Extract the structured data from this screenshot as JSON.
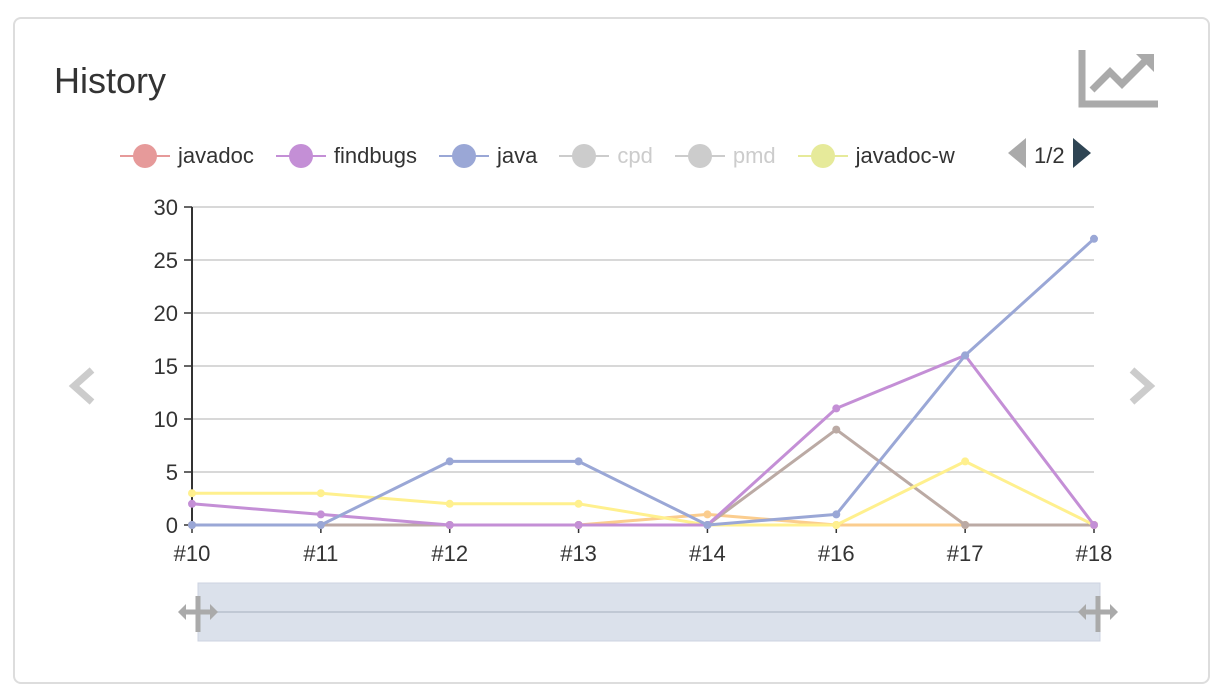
{
  "panel": {
    "title": "History"
  },
  "icons": {
    "trend": "trend-chart-icon",
    "prev": "chevron-left-icon",
    "next": "chevron-right-icon",
    "legend_prev": "triangle-left-icon",
    "legend_next": "triangle-right-icon",
    "zoom_handle": "resize-handle-icon"
  },
  "legend": {
    "page": "1/2",
    "items": [
      {
        "name": "javadoc",
        "color": "#e69a9a",
        "on": true
      },
      {
        "name": "findbugs",
        "color": "#c48fd6",
        "on": true
      },
      {
        "name": "java",
        "color": "#9aa7d6",
        "on": true
      },
      {
        "name": "cpd",
        "color": "#cccccc",
        "on": false
      },
      {
        "name": "pmd",
        "color": "#cccccc",
        "on": false
      },
      {
        "name": "javadoc-w",
        "color": "#e6ea9a",
        "on": true
      }
    ]
  },
  "chart_data": {
    "type": "line",
    "categories": [
      "#10",
      "#11",
      "#12",
      "#13",
      "#14",
      "#16",
      "#17",
      "#18"
    ],
    "ylim": [
      0,
      30
    ],
    "yticks": [
      0,
      5,
      10,
      15,
      20,
      25,
      30
    ],
    "grid": true,
    "legend_position": "top",
    "series": [
      {
        "name": "",
        "color": "#fbcd8e",
        "values": [
          0,
          0,
          0,
          0,
          1,
          0,
          0,
          0
        ]
      },
      {
        "name": "",
        "color": "#bbaaa4",
        "values": [
          0,
          0,
          0,
          0,
          0,
          9,
          0,
          0
        ]
      },
      {
        "name": "javadoc-w",
        "color": "#fff08e",
        "values": [
          3,
          3,
          2,
          2,
          0,
          0,
          6,
          0
        ]
      },
      {
        "name": "findbugs",
        "color": "#c48fd6",
        "values": [
          2,
          1,
          0,
          0,
          0,
          11,
          16,
          0
        ]
      },
      {
        "name": "java",
        "color": "#9aa7d6",
        "values": [
          0,
          0,
          6,
          6,
          0,
          1,
          16,
          27
        ]
      }
    ]
  }
}
